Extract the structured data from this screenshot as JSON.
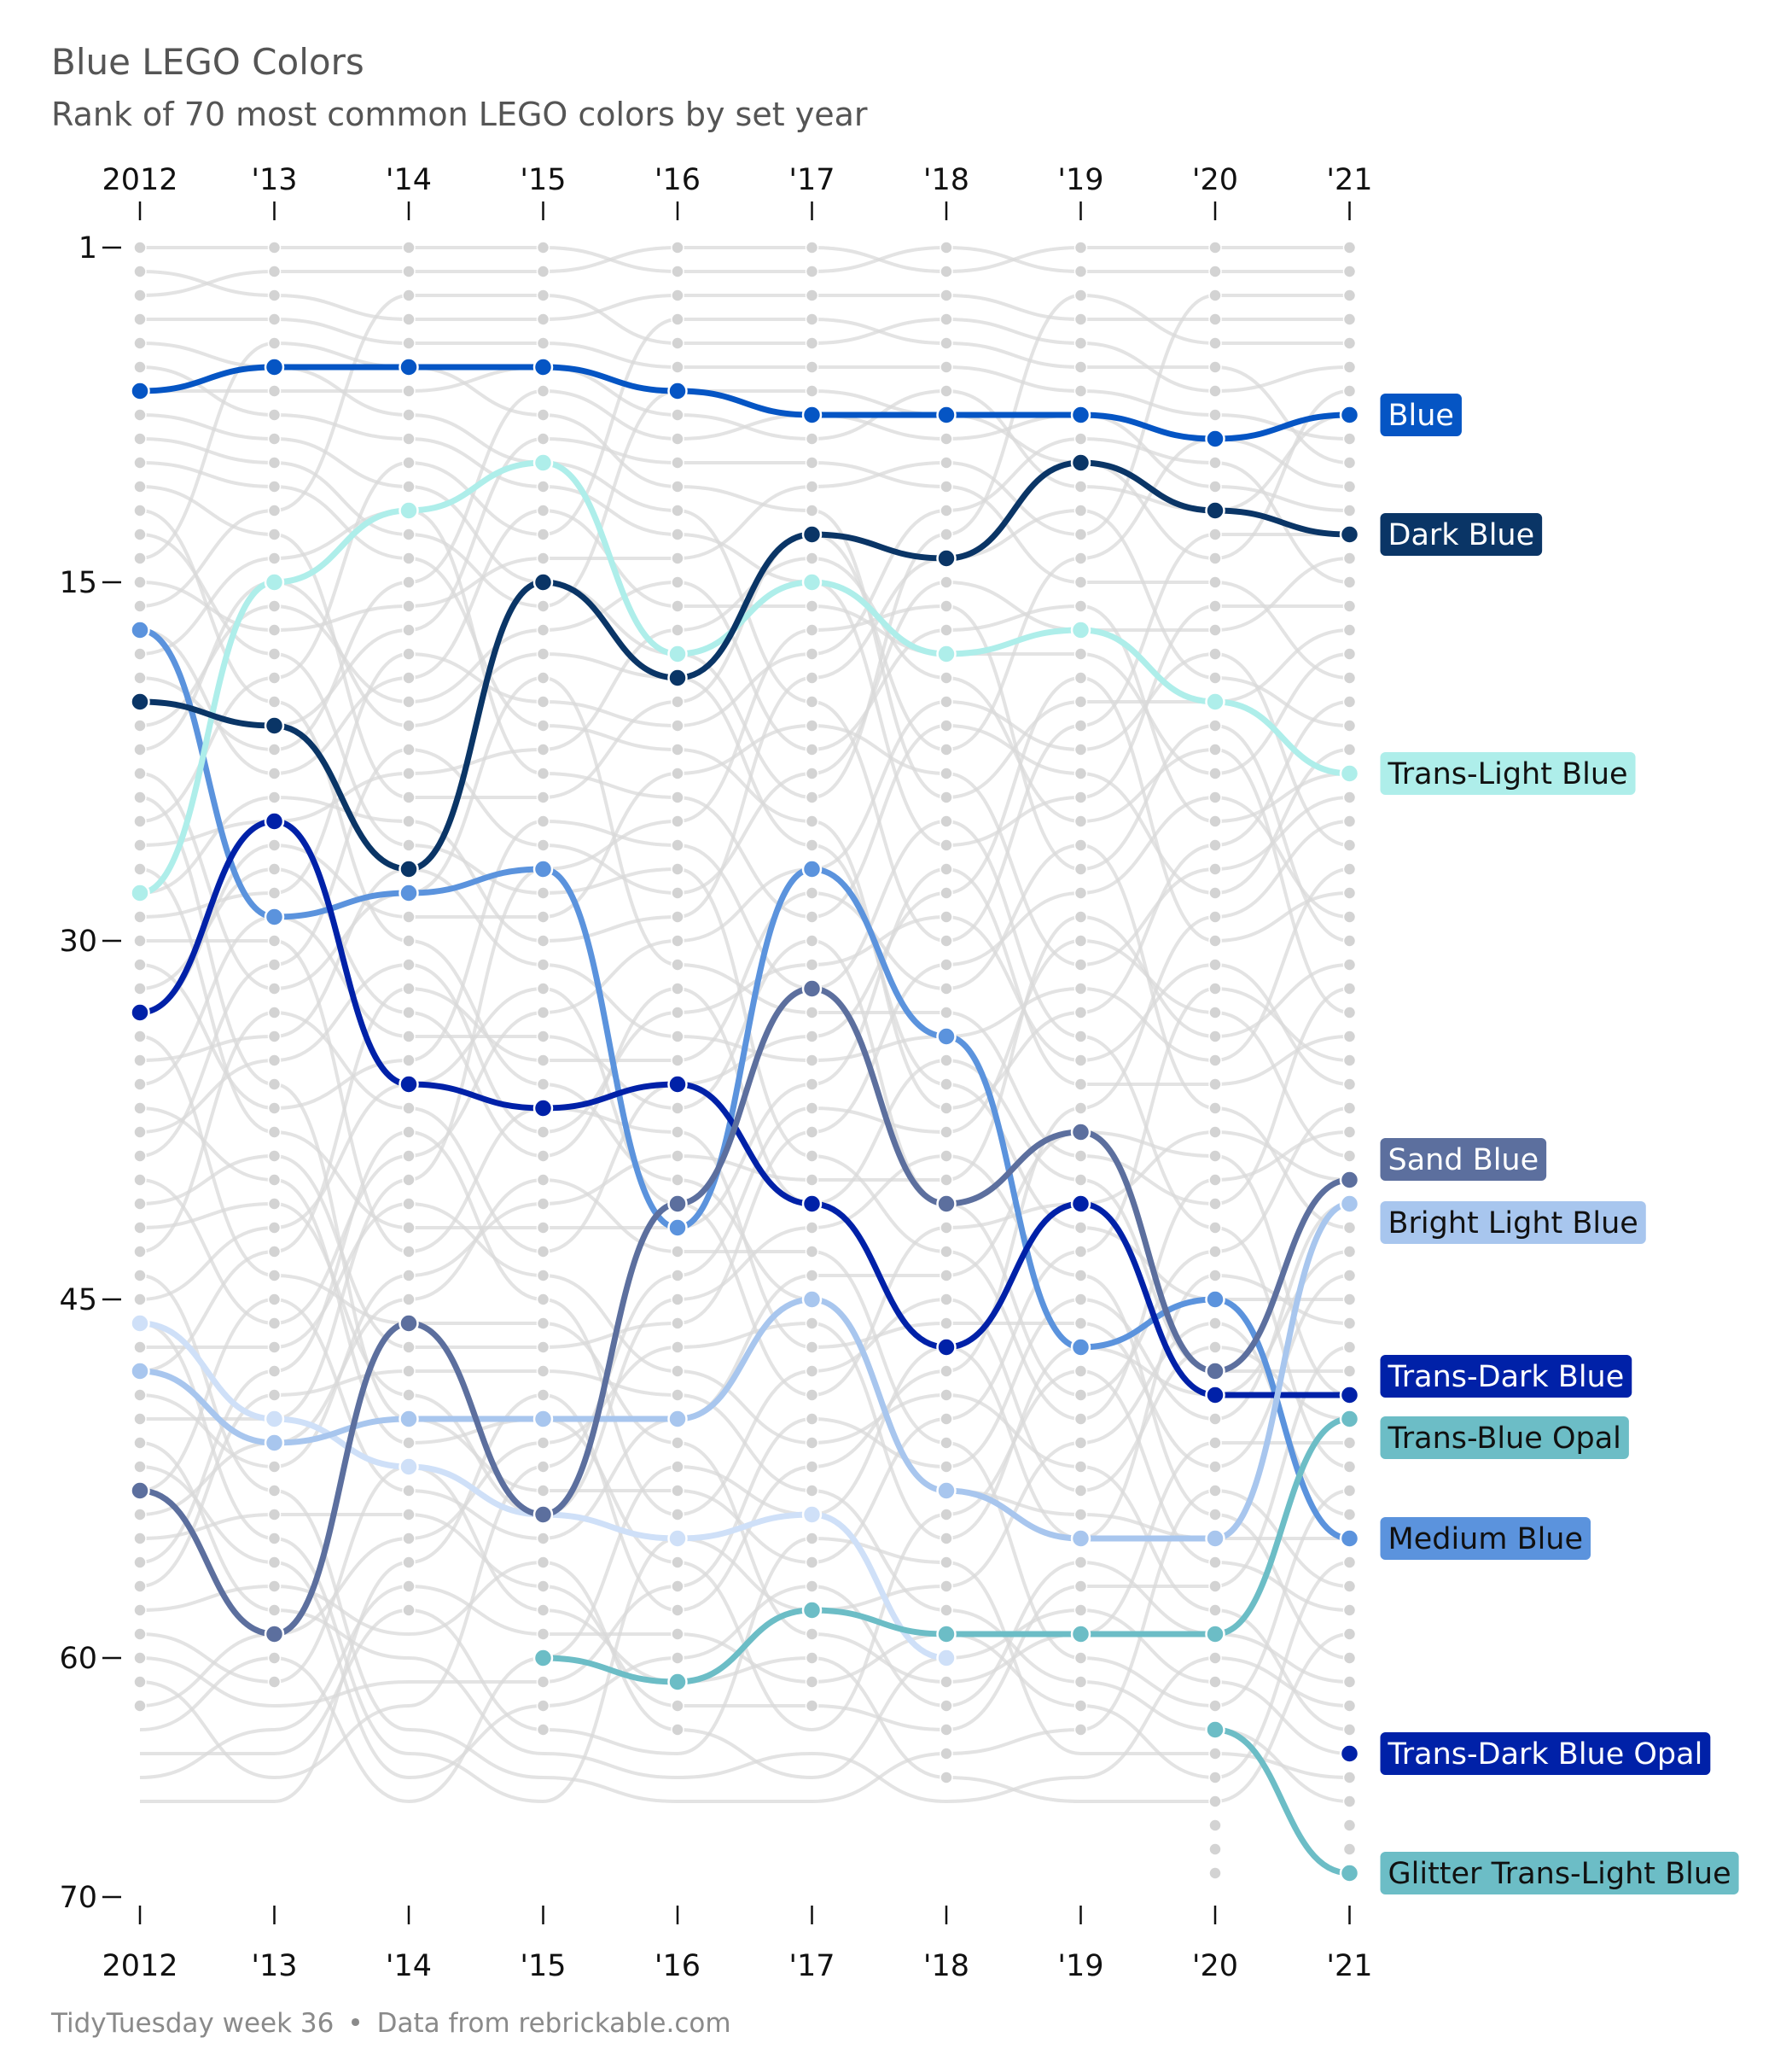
{
  "header": {
    "title": "Blue LEGO Colors",
    "subtitle": "Rank of 70 most common LEGO colors by set year"
  },
  "footer": {
    "source_left": "TidyTuesday week 36",
    "separator": "•",
    "source_right": "Data from rebrickable.com"
  },
  "chart_data": {
    "type": "line",
    "title": "Blue LEGO Colors",
    "subtitle": "Rank of 70 most common LEGO colors by set year",
    "x": [
      2012,
      2013,
      2014,
      2015,
      2016,
      2017,
      2018,
      2019,
      2020,
      2021
    ],
    "x_tick_labels": [
      "2012",
      "'13",
      "'14",
      "'15",
      "'16",
      "'17",
      "'18",
      "'19",
      "'20",
      "'21"
    ],
    "y_ticks": [
      1,
      15,
      30,
      45,
      60,
      70
    ],
    "ylim": [
      1,
      70
    ],
    "y_reversed": true,
    "grid": false,
    "background_dot_counts": [
      62,
      61,
      58,
      63,
      63,
      62,
      65,
      63,
      69,
      69
    ],
    "series": [
      {
        "name": "Blue",
        "color": "#0555c4",
        "text_color": "#ffffff",
        "values": [
          7,
          6,
          6,
          6,
          7,
          8,
          8,
          8,
          9,
          8
        ]
      },
      {
        "name": "Dark Blue",
        "color": "#0a3566",
        "text_color": "#ffffff",
        "values": [
          20,
          21,
          27,
          15,
          19,
          13,
          14,
          10,
          12,
          13
        ]
      },
      {
        "name": "Trans-Light Blue",
        "color": "#aeeeea",
        "text_color": "#111111",
        "values": [
          28,
          15,
          12,
          10,
          18,
          15,
          18,
          17,
          20,
          23
        ]
      },
      {
        "name": "Sand Blue",
        "color": "#5c6f9e",
        "text_color": "#ffffff",
        "values": [
          53,
          59,
          46,
          54,
          41,
          32,
          41,
          38,
          48,
          40
        ]
      },
      {
        "name": "Bright Light Blue",
        "color": "#a8c6ee",
        "text_color": "#111111",
        "values": [
          48,
          51,
          50,
          50,
          50,
          45,
          53,
          55,
          55,
          41
        ]
      },
      {
        "name": "Trans-Dark Blue",
        "color": "#0021a8",
        "text_color": "#ffffff",
        "values": [
          33,
          25,
          36,
          37,
          36,
          41,
          47,
          41,
          49,
          49
        ]
      },
      {
        "name": "Trans-Blue Opal",
        "color": "#6cbdc6",
        "text_color": "#111111",
        "values": [
          null,
          null,
          null,
          60,
          61,
          58,
          59,
          59,
          59,
          50
        ]
      },
      {
        "name": "Medium Blue",
        "color": "#5b93dd",
        "text_color": "#111111",
        "values": [
          17,
          29,
          28,
          27,
          42,
          27,
          34,
          47,
          45,
          55
        ]
      },
      {
        "name": "Trans-Dark Blue Opal",
        "color": "#0021a8",
        "text_color": "#ffffff",
        "values": [
          null,
          null,
          null,
          null,
          null,
          null,
          null,
          null,
          null,
          64
        ]
      },
      {
        "name": "Glitter Trans-Light Blue",
        "color": "#6cbdc6",
        "text_color": "#111111",
        "values": [
          null,
          null,
          null,
          null,
          null,
          null,
          null,
          null,
          63,
          69
        ]
      },
      {
        "name": "",
        "color": "#cfe0f8",
        "text_color": "#111111",
        "values": [
          46,
          50,
          52,
          54,
          55,
          54,
          60,
          null,
          null,
          null
        ]
      }
    ]
  }
}
